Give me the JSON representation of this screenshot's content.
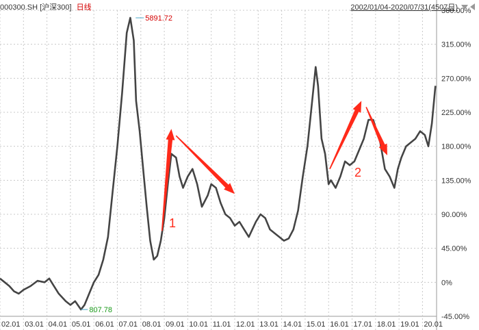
{
  "header": {
    "symbol": "000300.SH",
    "name": "[沪深300]",
    "period": "日线",
    "range": "2002/01/04-2020/07/31(4507日)"
  },
  "colors": {
    "line": "#444444",
    "arrow": "#ff2a1a",
    "high_label": "#d40000",
    "low_label": "#1a9a1a",
    "grid": "#c8c8c8"
  },
  "chart_data": {
    "type": "line",
    "y_unit": "%",
    "ylim": [
      -45,
      360
    ],
    "y_ticks": [
      "360.00%",
      "315.00%",
      "270.00%",
      "225.00%",
      "180.00%",
      "135.00%",
      "90.00%",
      "45.00%",
      "0%",
      "-45.00%"
    ],
    "y_tick_values": [
      360,
      315,
      270,
      225,
      180,
      135,
      90,
      45,
      0,
      -45
    ],
    "x_ticks": [
      "02.01",
      "03.01",
      "04.01",
      "05.01",
      "06.01",
      "07.01",
      "08.01",
      "09.01",
      "10.01",
      "11.01",
      "12.01",
      "13.01",
      "14.01",
      "15.01",
      "16.01",
      "17.01",
      "18.01",
      "19.01",
      "20.01"
    ],
    "xlim": [
      2002.0,
      2020.6
    ],
    "series": [
      {
        "x": [
          2002.0,
          2002.2,
          2002.4,
          2002.6,
          2002.8,
          2003.0,
          2003.3,
          2003.6,
          2003.9,
          2004.1,
          2004.3,
          2004.5,
          2004.8,
          2005.0,
          2005.2,
          2005.45,
          2005.6,
          2005.8,
          2006.0,
          2006.2,
          2006.4,
          2006.6,
          2006.8,
          2007.0,
          2007.2,
          2007.4,
          2007.55,
          2007.7,
          2007.8,
          2007.95,
          2008.1,
          2008.25,
          2008.4,
          2008.55,
          2008.7,
          2008.85,
          2009.0,
          2009.15,
          2009.3,
          2009.5,
          2009.65,
          2009.8,
          2010.0,
          2010.2,
          2010.4,
          2010.6,
          2010.85,
          2011.0,
          2011.2,
          2011.4,
          2011.6,
          2011.8,
          2012.0,
          2012.2,
          2012.4,
          2012.6,
          2012.9,
          2013.1,
          2013.3,
          2013.5,
          2013.7,
          2013.9,
          2014.1,
          2014.3,
          2014.5,
          2014.7,
          2014.9,
          2015.1,
          2015.3,
          2015.45,
          2015.55,
          2015.7,
          2015.85,
          2016.0,
          2016.1,
          2016.3,
          2016.5,
          2016.7,
          2016.9,
          2017.1,
          2017.3,
          2017.5,
          2017.7,
          2017.9,
          2018.05,
          2018.2,
          2018.4,
          2018.6,
          2018.8,
          2018.95,
          2019.1,
          2019.3,
          2019.5,
          2019.7,
          2019.9,
          2020.1,
          2020.25,
          2020.4,
          2020.55
        ],
        "y": [
          5,
          0,
          -5,
          -12,
          -15,
          -10,
          -5,
          2,
          0,
          5,
          -5,
          -15,
          -25,
          -30,
          -25,
          -36,
          -30,
          -15,
          0,
          10,
          30,
          60,
          120,
          180,
          250,
          330,
          350,
          320,
          240,
          200,
          150,
          100,
          55,
          30,
          35,
          55,
          85,
          130,
          170,
          165,
          140,
          125,
          140,
          150,
          130,
          100,
          115,
          130,
          125,
          105,
          90,
          85,
          75,
          80,
          70,
          60,
          80,
          90,
          85,
          70,
          65,
          60,
          55,
          58,
          70,
          95,
          140,
          180,
          240,
          285,
          260,
          190,
          170,
          130,
          135,
          125,
          140,
          160,
          155,
          160,
          175,
          190,
          215,
          215,
          200,
          185,
          150,
          140,
          125,
          150,
          165,
          180,
          185,
          190,
          200,
          195,
          180,
          210,
          260
        ]
      }
    ],
    "annotations": [
      {
        "text": "5891.72",
        "x": 2007.78,
        "y": 350
      },
      {
        "text": "807.78",
        "x": 2005.45,
        "y": -36
      },
      {
        "text": "1",
        "x": 2009.2,
        "y": 73
      },
      {
        "text": "2",
        "x": 2017.1,
        "y": 140
      }
    ],
    "arrows": [
      {
        "x1": 2008.9,
        "y1": 68,
        "x2": 2009.3,
        "y2": 203
      },
      {
        "x1": 2009.5,
        "y1": 194,
        "x2": 2012.0,
        "y2": 117
      },
      {
        "x1": 2016.05,
        "y1": 150,
        "x2": 2017.4,
        "y2": 240
      },
      {
        "x1": 2017.6,
        "y1": 232,
        "x2": 2018.5,
        "y2": 168
      }
    ]
  }
}
